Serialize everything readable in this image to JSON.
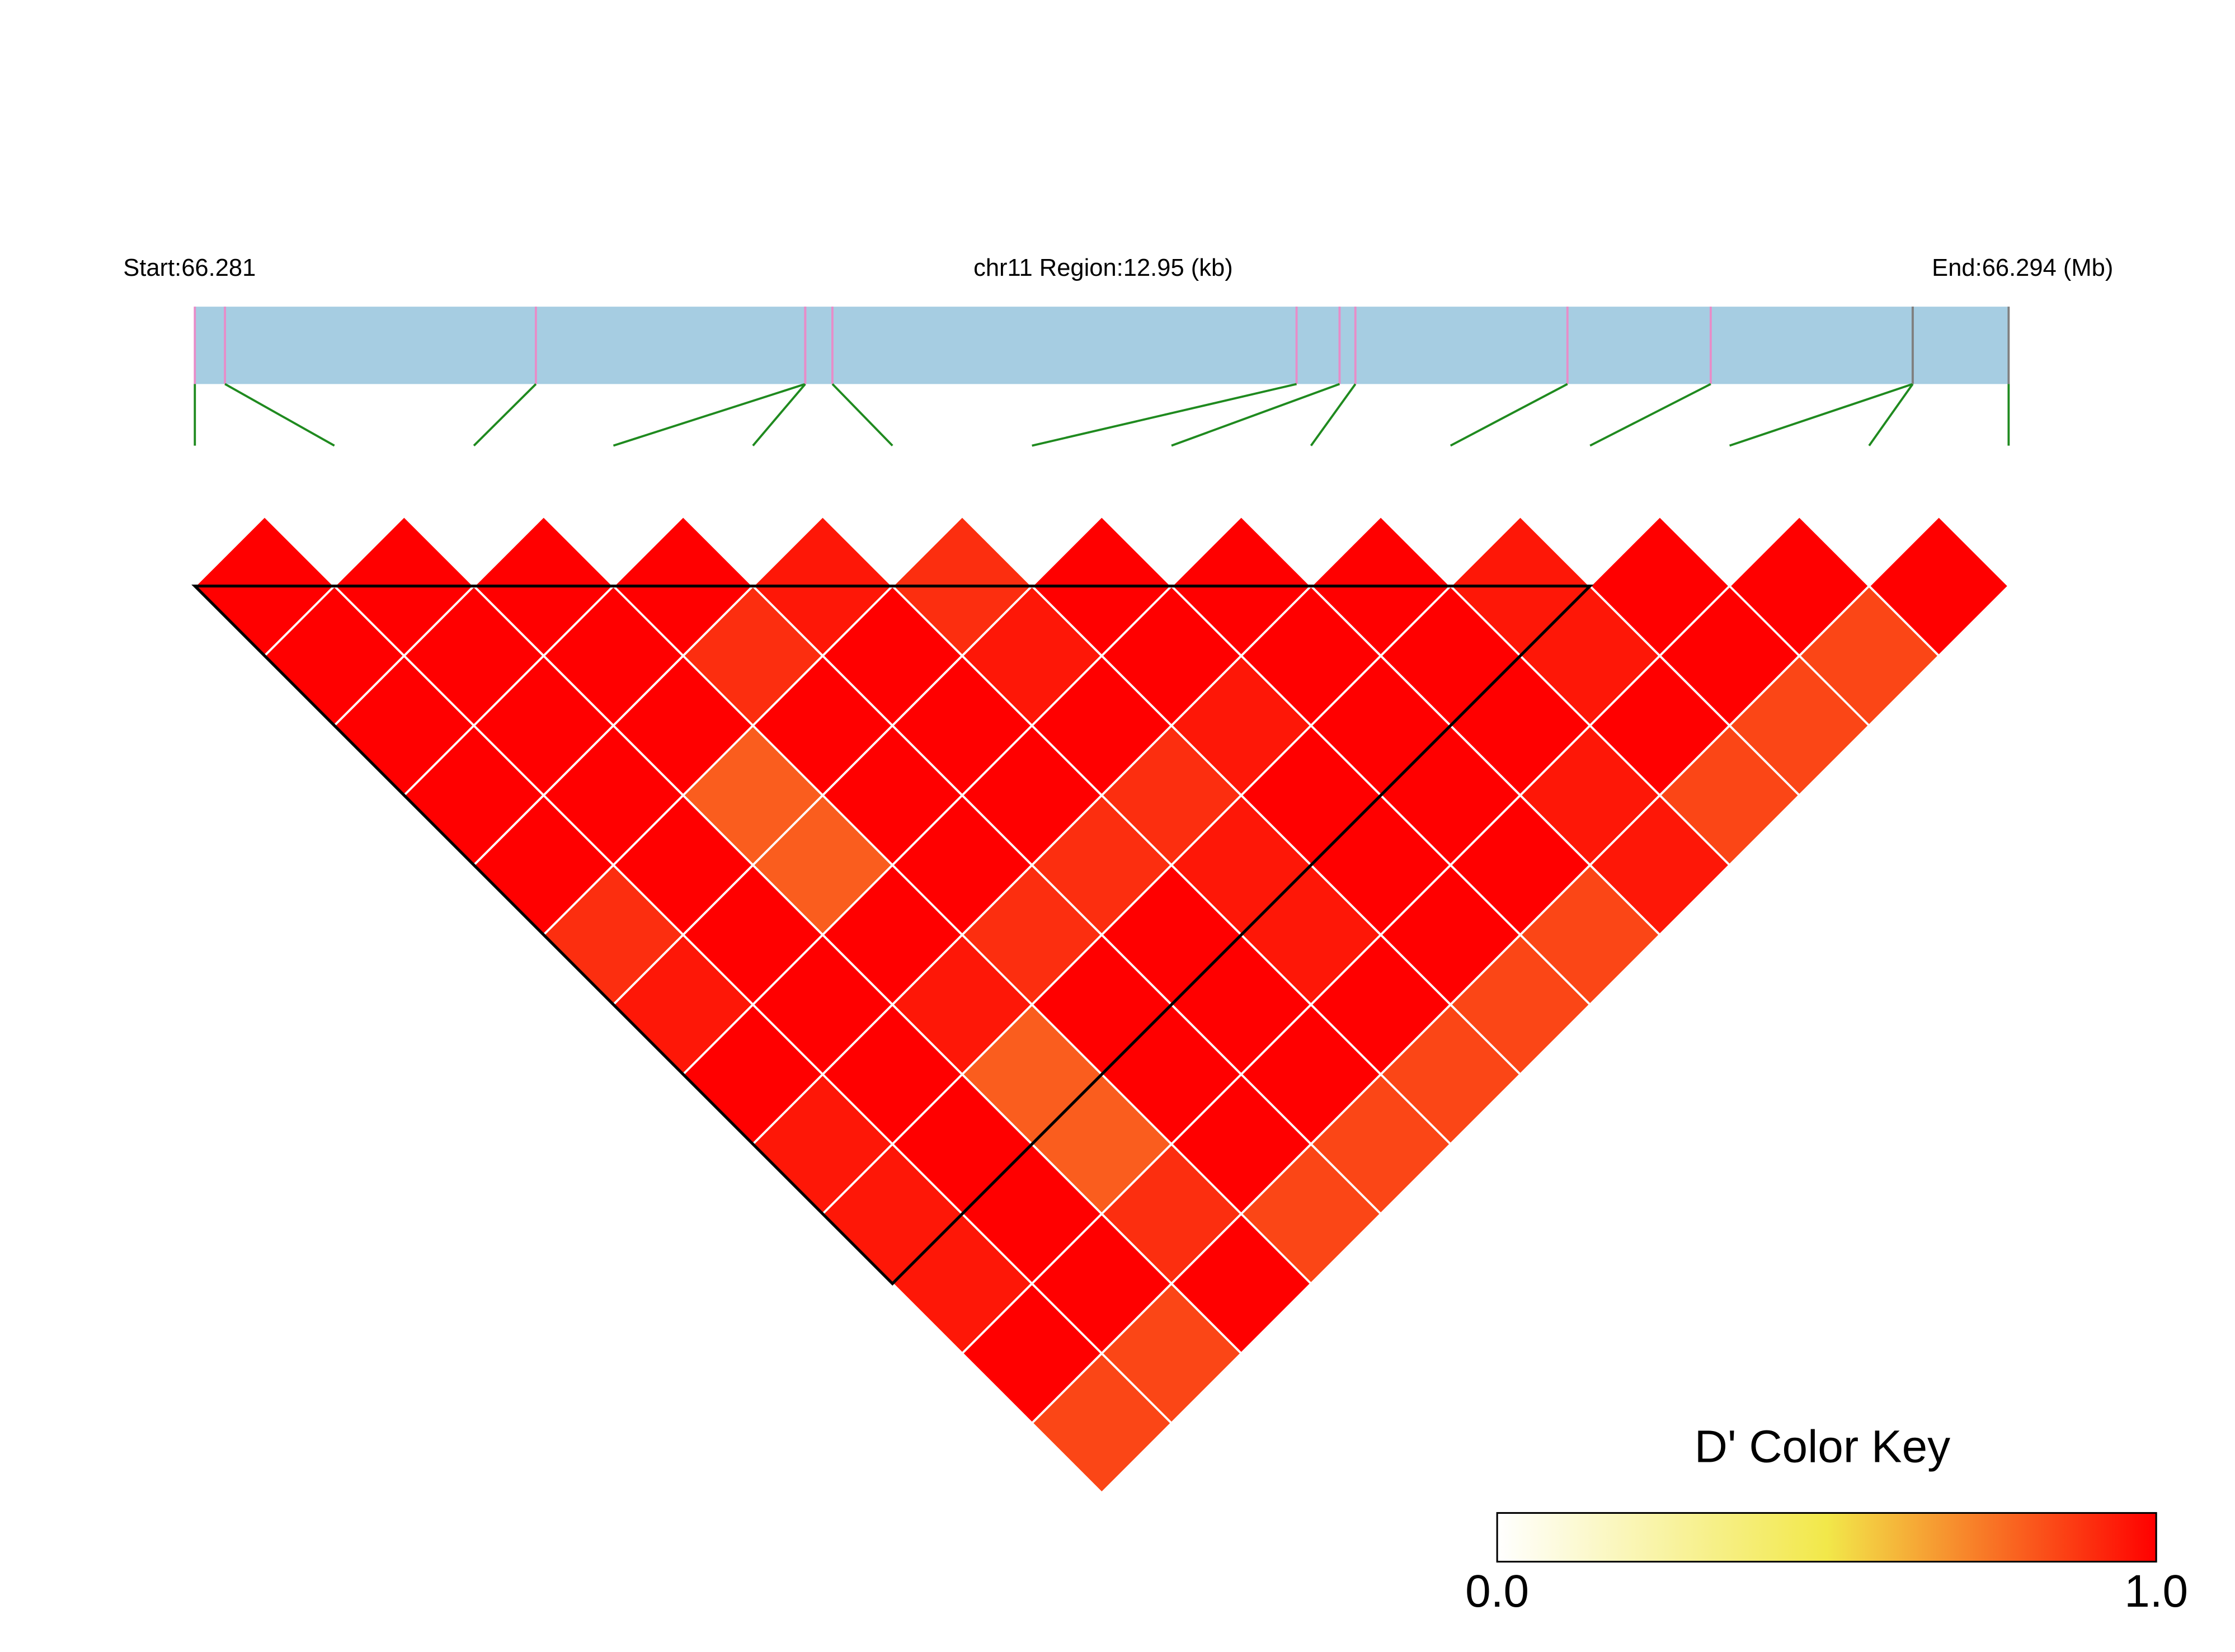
{
  "chart_data": {
    "type": "ld-heatmap",
    "start_label": "Start:66.281",
    "region_label": "chr11 Region:12.95 (kb)",
    "end_label": "End:66.294 (Mb)",
    "xlim": [
      66281000,
      66293950
    ],
    "snp_positions": [
      66281000,
      66281215,
      66283435,
      66285358,
      66285358,
      66285552,
      66288866,
      66289173,
      66289286,
      66290800,
      66291823,
      66293265,
      66293265,
      66293950
    ],
    "snp_colors": [
      "#e88cc8",
      "#e88cc8",
      "#e88cc8",
      "#e88cc8",
      "#e88cc8",
      "#e88cc8",
      "#e88cc8",
      "#e88cc8",
      "#e88cc8",
      "#e88cc8",
      "#e88cc8",
      "#808080",
      "#808080",
      "#808080"
    ],
    "dprime": [
      [
        1,
        1,
        1,
        1,
        1,
        0.9,
        0.95,
        1,
        0.95,
        0.95,
        0.95,
        1,
        0.85
      ],
      [
        1,
        1,
        1,
        1,
        1,
        1,
        1,
        1,
        1,
        1,
        1,
        0.85
      ],
      [
        1,
        1,
        1,
        0.8,
        0.8,
        1,
        0.95,
        0.8,
        0.8,
        0.9,
        1
      ],
      [
        1,
        0.9,
        1,
        1,
        1,
        0.9,
        1,
        1,
        1,
        0.85
      ],
      [
        0.95,
        1,
        1,
        1,
        0.9,
        1,
        1,
        1,
        0.85
      ],
      [
        0.9,
        0.95,
        1,
        0.9,
        0.95,
        0.95,
        1,
        0.85
      ],
      [
        1,
        1,
        0.95,
        1,
        1,
        1,
        0.85
      ],
      [
        1,
        1,
        1,
        1,
        1,
        0.85
      ],
      [
        1,
        1,
        1,
        0.95,
        0.95
      ],
      [
        0.95,
        0.95,
        1,
        0.85
      ],
      [
        1,
        1,
        0.85
      ],
      [
        1,
        0.85
      ],
      [
        1
      ]
    ],
    "blocks": [
      [
        0,
        10
      ]
    ],
    "bar_color": "#a6cde2",
    "link_color": "#1f8a1f",
    "color_key": {
      "title": "D' Color Key",
      "lim": [
        0,
        1
      ],
      "ticks": [
        {
          "value": 0,
          "label": "0.0"
        },
        {
          "value": 1,
          "label": "1.0"
        }
      ],
      "colors": [
        "#ffffff",
        "#f2e84a",
        "#ff0000"
      ]
    }
  }
}
